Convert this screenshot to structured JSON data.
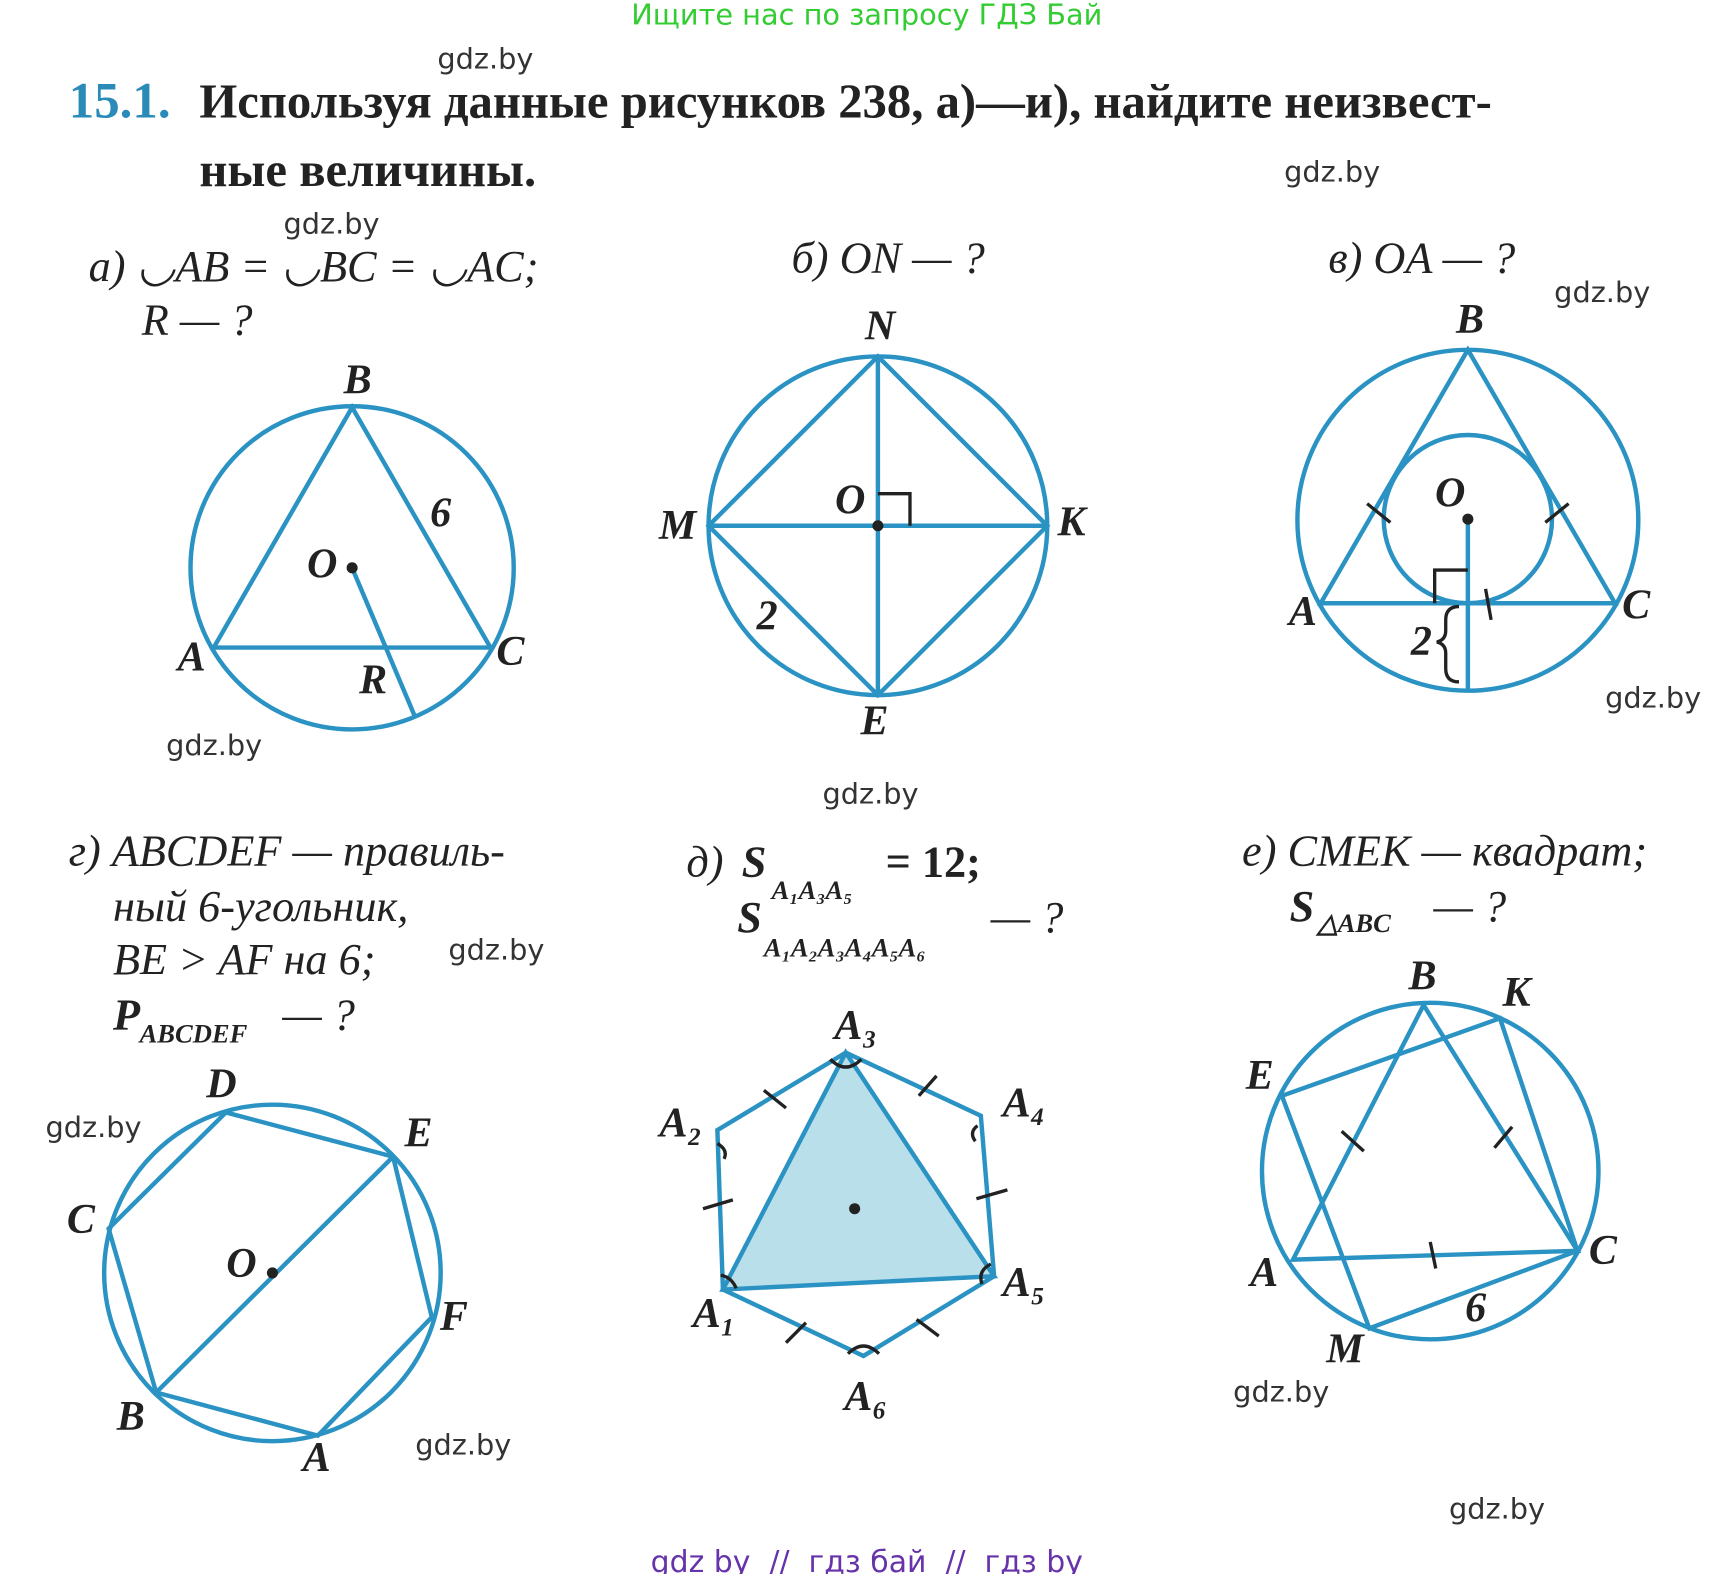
{
  "header": {
    "top_link": "Ищите нас по запросу ГДЗ Бай"
  },
  "watermarks": [
    "gdz.by",
    "gdz.by",
    "gdz.by",
    "gdz.by",
    "gdz.by",
    "gdz.by",
    "gdz.by",
    "gdz.by",
    "gdz.by",
    "gdz.by",
    "gdz.by",
    "gdz.by"
  ],
  "problem": {
    "number": "15.1.",
    "text_lines": [
      "Используя данные рисунков 238, а)—и), найдите неизвест-",
      "ные величины."
    ]
  },
  "figures": [
    {
      "caption_lines": [
        "а) ◡AB = ◡BC = ◡AC;",
        "R — ?"
      ],
      "labels": [
        "B",
        "6",
        "O",
        "A",
        "C",
        "R"
      ]
    },
    {
      "caption_lines": [
        "б) ON — ?"
      ],
      "labels": [
        "N",
        "O",
        "M",
        "K",
        "2",
        "E"
      ]
    },
    {
      "caption_lines": [
        "в) OA — ?"
      ],
      "labels": [
        "B",
        "O",
        "A",
        "C",
        "2"
      ]
    },
    {
      "caption_lines": [
        "г) ABCDEF — правиль-",
        "ный 6-угольник,",
        "BE > AF на 6;"
      ],
      "area": {
        "symbol": "P",
        "sub": "ABCDEF",
        "ask": "— ?"
      },
      "labels": [
        "D",
        "E",
        "C",
        "O",
        "F",
        "B",
        "A"
      ]
    },
    {
      "caption_lines": [
        "д)"
      ],
      "formula": [
        {
          "symbol": "S",
          "sub": "A₁A₃A₅",
          "rest": "= 12;"
        },
        {
          "symbol": "S",
          "sub": "A₁A₂A₃A₄A₅A₆",
          "rest": "— ?"
        }
      ],
      "labels": [
        "A₃",
        "A₂",
        "A₄",
        "A₅",
        "A₁",
        "A₆"
      ]
    },
    {
      "caption_lines": [
        "е) CMEK — квадрат;"
      ],
      "area": {
        "symbol": "S",
        "sub": "△ABC",
        "ask": "— ?"
      },
      "labels": [
        "B",
        "K",
        "E",
        "A",
        "C",
        "M",
        "6"
      ]
    }
  ],
  "footer": "gdz by  //  гдз бай  //  гдз by"
}
